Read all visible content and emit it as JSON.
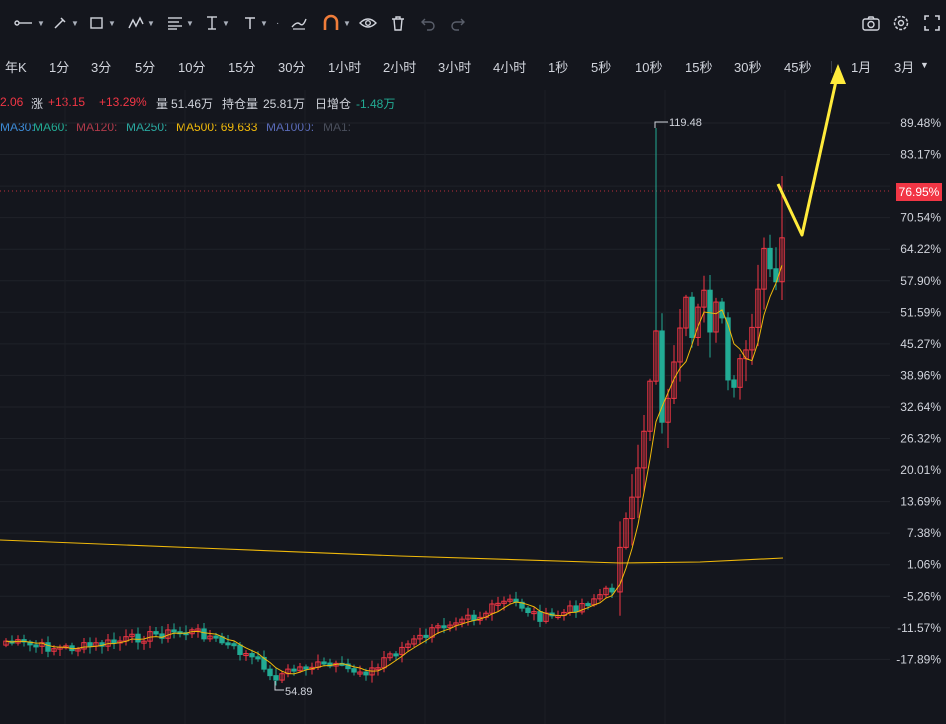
{
  "toolbar": {
    "tools": [
      "trend-line-tool",
      "pen-tool",
      "shape-tool",
      "pattern-tool",
      "fib-tool",
      "measure-tool",
      "text-tool",
      "brush-tool",
      "magnet-tool",
      "eye-tool",
      "trash-tool",
      "undo-tool",
      "redo-tool"
    ],
    "right_tools": [
      "camera-icon",
      "settings-icon",
      "fullscreen-icon"
    ]
  },
  "timeframes": [
    "年K",
    "1分",
    "3分",
    "5分",
    "10分",
    "15分",
    "30分",
    "1小时",
    "2小时",
    "3小时",
    "4小时",
    "1秒",
    "5秒",
    "10秒",
    "15秒",
    "30秒",
    "45秒",
    "1月",
    "3月"
  ],
  "info": {
    "price": "2.06",
    "change_label": "涨",
    "change": "+13.15",
    "change_pct": "+13.29%",
    "volume_label": "量",
    "volume": "51.46万",
    "oi_label": "持仓量",
    "oi": "25.81万",
    "oi_change_label": "日增仓",
    "oi_change": "-1.48万"
  },
  "ma": {
    "ma30": "MA30:",
    "ma60": "MA60:",
    "ma120": "MA120:",
    "ma250": "MA250:",
    "ma500": "MA500: 69.633",
    "ma1000": "MA1000:",
    "ma1": "MA1:"
  },
  "colors": {
    "background": "#14161d",
    "up": "#f23645",
    "down": "#22ab94",
    "ma_line": "#f0b90b",
    "arrow": "#ffeb3b"
  },
  "chart_data": {
    "type": "candlestick",
    "y_axis_labels": [
      "89.48%",
      "83.17%",
      "76.95%",
      "70.54%",
      "64.22%",
      "57.90%",
      "51.59%",
      "45.27%",
      "38.96%",
      "32.64%",
      "26.32%",
      "20.01%",
      "13.69%",
      "7.38%",
      "1.06%",
      "-5.26%",
      "-11.57%",
      "-17.89%"
    ],
    "current_value_label": "76.95%",
    "high_annotation": "119.48",
    "low_annotation": "54.89",
    "trend": "sideways then sharp rally",
    "overlay_lines": [
      "MA500",
      "short MA"
    ]
  }
}
